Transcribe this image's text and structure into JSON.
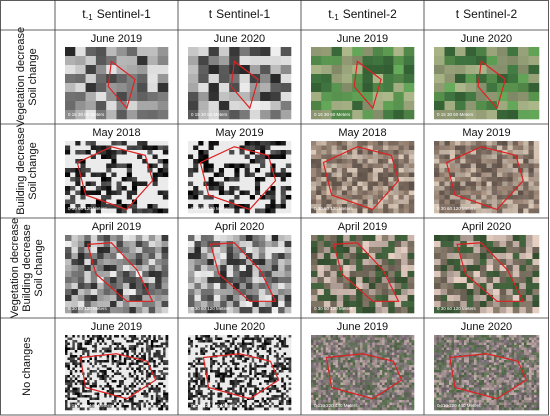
{
  "columns": [
    {
      "time": "t",
      "sub": "-1",
      "sensor": "Sentinel-1"
    },
    {
      "time": "t",
      "sensor": "Sentinel-1"
    },
    {
      "time": "t",
      "sub": "-1",
      "sensor": "Sentinel-2"
    },
    {
      "time": "t",
      "sensor": "Sentinel-2"
    }
  ],
  "rows": [
    {
      "label": [
        "Vegetation decrease",
        "Soil change"
      ],
      "dates": [
        "June 2019",
        "June 2020",
        "June 2019",
        "June 2020"
      ],
      "scale": "0 15 30    60 Meters"
    },
    {
      "label": [
        "Building decrease",
        "Soil change"
      ],
      "dates": [
        "May 2018",
        "May 2019",
        "May 2018",
        "May 2019"
      ],
      "scale": "0 30 60    120 Meters"
    },
    {
      "label": [
        "Vegetation decrease",
        "Building decrease",
        "Soil change"
      ],
      "dates": [
        "April 2019",
        "April 2020",
        "April 2019",
        "April 2020"
      ],
      "scale": "0 30 60    120 Meters"
    },
    {
      "label": [
        "No changes"
      ],
      "dates": [
        "June 2019",
        "June 2020",
        "June 2019",
        "June 2020"
      ],
      "scale": "0 110 220    440 Meters"
    }
  ]
}
